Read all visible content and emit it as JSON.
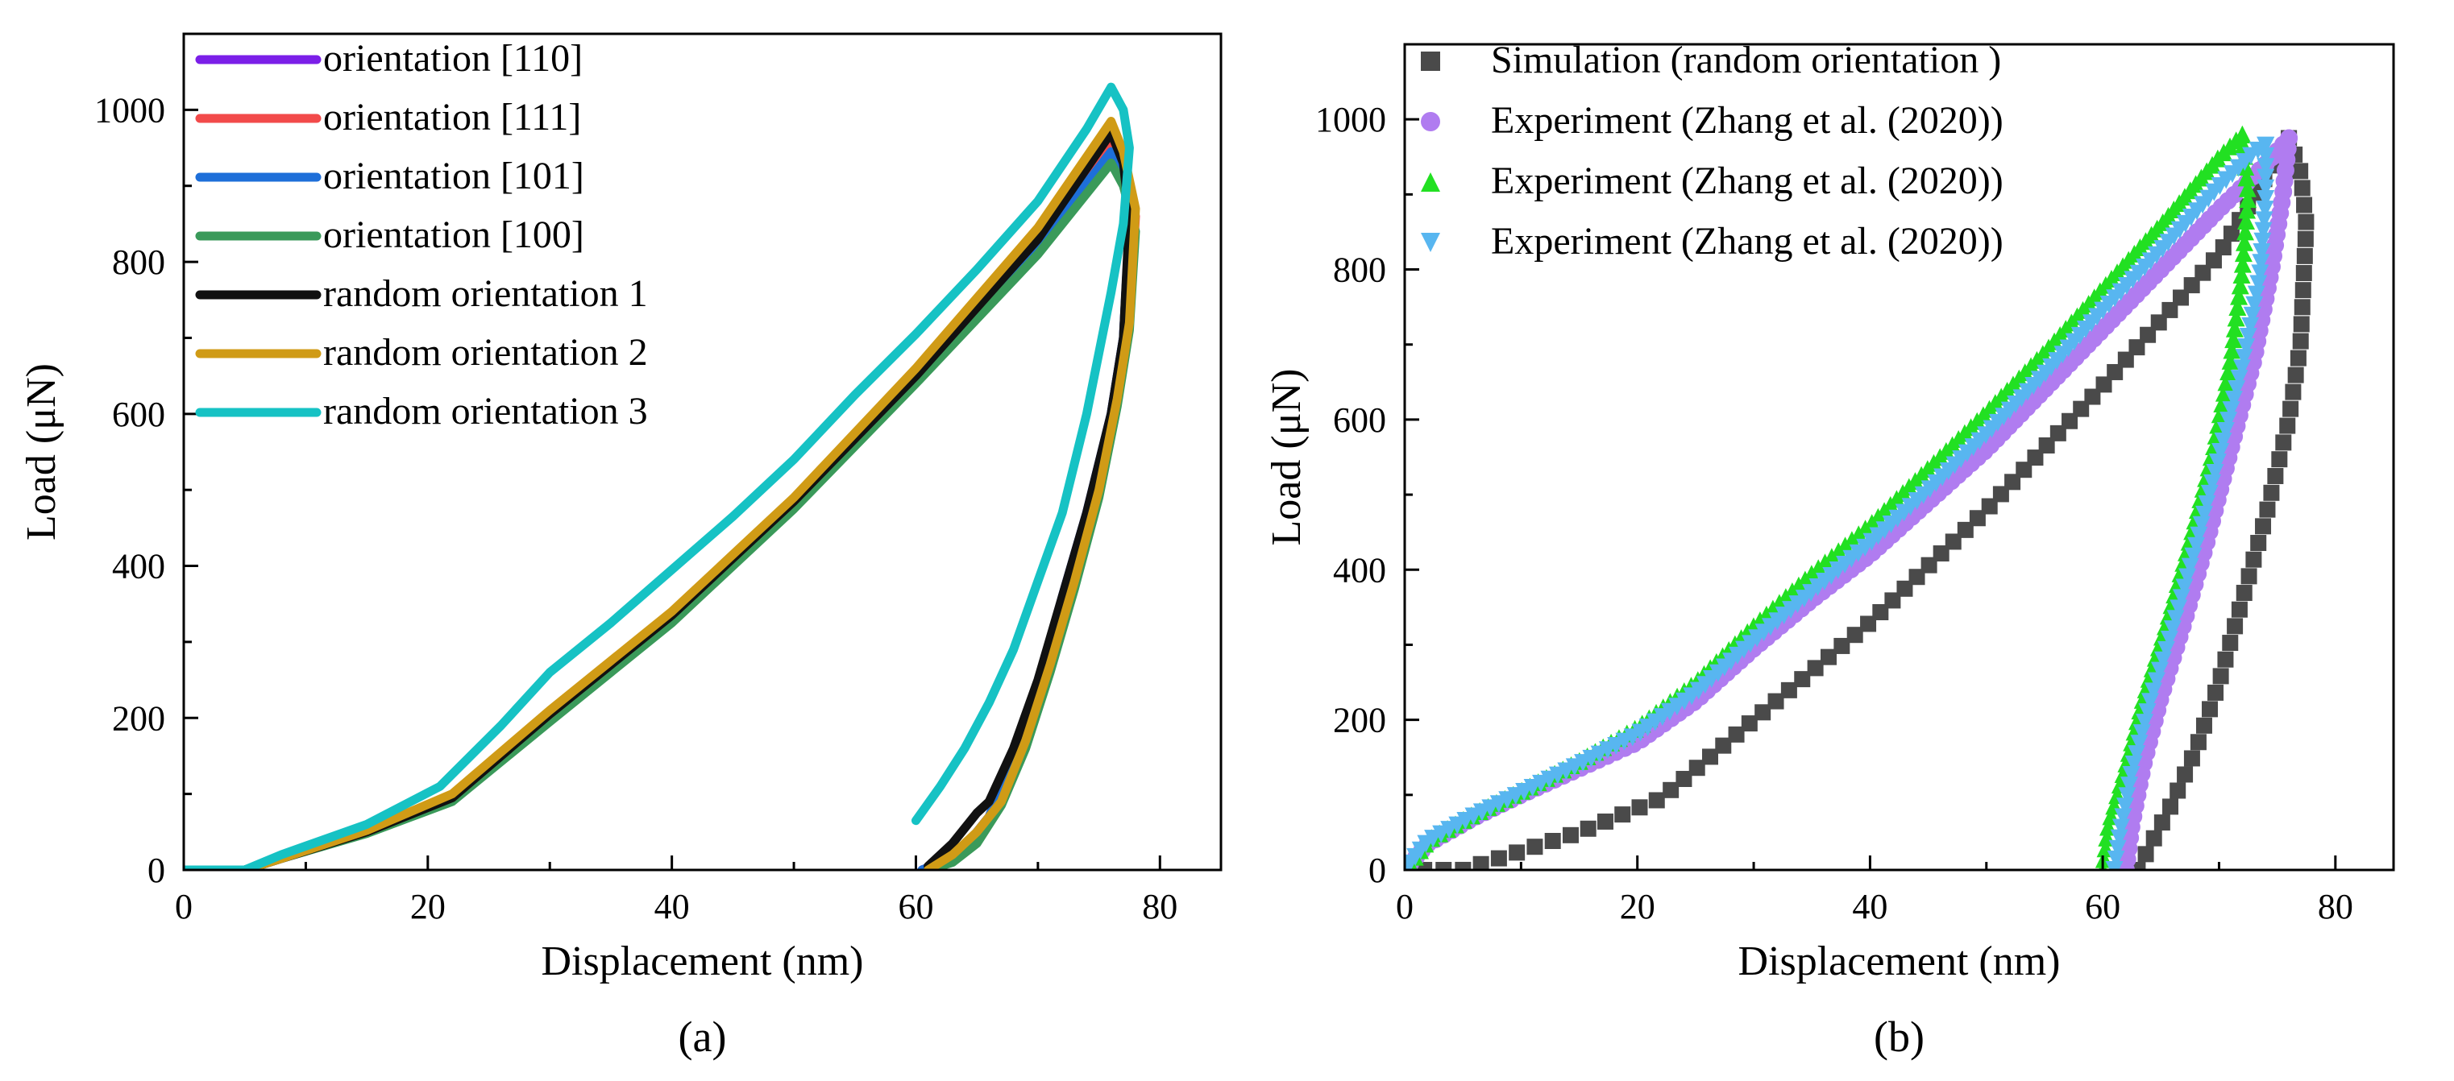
{
  "chart_data": [
    {
      "type": "line",
      "panel_label": "(a)",
      "xlabel": "Displacement (nm)",
      "ylabel": "Load (μN)",
      "xlim": [
        0,
        85
      ],
      "ylim": [
        0,
        1100
      ],
      "xticks": [
        0,
        20,
        40,
        60,
        80
      ],
      "yticks": [
        0,
        200,
        400,
        600,
        800,
        1000
      ],
      "legend_position": "top-left",
      "series": [
        {
          "name": "orientation [110]",
          "color": "#7b1fe8",
          "x": [
            0,
            5,
            8,
            15,
            22,
            30,
            40,
            50,
            60,
            70,
            76,
            77,
            77.5,
            77,
            76,
            74,
            72,
            70,
            68,
            66,
            64,
            62,
            60.5
          ],
          "y": [
            0,
            0,
            15,
            50,
            95,
            200,
            330,
            480,
            645,
            820,
            950,
            915,
            850,
            700,
            600,
            470,
            360,
            240,
            150,
            70,
            30,
            10,
            0
          ]
        },
        {
          "name": "orientation [111]",
          "color": "#f24a4a",
          "x": [
            0,
            5,
            8,
            15,
            22,
            30,
            40,
            50,
            60,
            70,
            76,
            77,
            78,
            77.5,
            76.5,
            75,
            73,
            71,
            69,
            67,
            65,
            64,
            62,
            61
          ],
          "y": [
            0,
            0,
            15,
            50,
            95,
            200,
            330,
            480,
            645,
            820,
            960,
            920,
            860,
            720,
            620,
            500,
            380,
            270,
            170,
            90,
            50,
            30,
            10,
            0
          ]
        },
        {
          "name": "orientation [101]",
          "color": "#1e6fd9",
          "x": [
            0,
            5,
            8,
            15,
            22,
            30,
            40,
            50,
            60,
            70,
            76,
            77,
            77.5,
            77,
            76,
            74,
            72,
            70,
            68,
            66,
            64,
            62,
            60.5
          ],
          "y": [
            0,
            0,
            15,
            50,
            95,
            200,
            330,
            480,
            645,
            820,
            945,
            910,
            850,
            700,
            600,
            470,
            360,
            240,
            150,
            70,
            30,
            10,
            0
          ]
        },
        {
          "name": "orientation [100]",
          "color": "#3a9a5a",
          "x": [
            0,
            5,
            8,
            15,
            22,
            30,
            40,
            50,
            60,
            70,
            76,
            77,
            78,
            77.5,
            76.5,
            75,
            73,
            71,
            69,
            67,
            65,
            63,
            61
          ],
          "y": [
            0,
            0,
            15,
            48,
            90,
            195,
            325,
            475,
            640,
            810,
            930,
            900,
            840,
            710,
            610,
            490,
            370,
            260,
            160,
            85,
            35,
            10,
            0
          ]
        },
        {
          "name": "random orientation 1",
          "color": "#111111",
          "x": [
            0,
            5,
            8,
            15,
            22,
            30,
            40,
            50,
            60,
            70,
            76,
            77,
            77.5,
            77,
            76,
            74,
            72,
            70,
            68,
            66,
            65,
            63,
            61
          ],
          "y": [
            0,
            0,
            15,
            50,
            95,
            205,
            335,
            485,
            650,
            830,
            970,
            930,
            860,
            700,
            600,
            470,
            360,
            250,
            160,
            90,
            75,
            35,
            5
          ]
        },
        {
          "name": "random orientation 2",
          "color": "#d09b16",
          "x": [
            0,
            5,
            8,
            15,
            22,
            30,
            40,
            50,
            60,
            70,
            76,
            77,
            78,
            77.5,
            76.5,
            75,
            73,
            71,
            69,
            67,
            65,
            63,
            61
          ],
          "y": [
            0,
            0,
            15,
            52,
            100,
            210,
            340,
            490,
            660,
            845,
            985,
            945,
            870,
            720,
            620,
            500,
            380,
            270,
            170,
            90,
            50,
            20,
            0
          ]
        },
        {
          "name": "random orientation 3",
          "color": "#16c2c4",
          "x": [
            0,
            5,
            8,
            15,
            21,
            26,
            30,
            35,
            40,
            45,
            50,
            55,
            60,
            65,
            70,
            74,
            76,
            77,
            77.5,
            77,
            76,
            74,
            72,
            70,
            68,
            66,
            64,
            62,
            60
          ],
          "y": [
            0,
            0,
            20,
            60,
            110,
            190,
            260,
            325,
            395,
            465,
            540,
            625,
            705,
            790,
            880,
            975,
            1030,
            1000,
            950,
            850,
            760,
            600,
            470,
            380,
            290,
            220,
            160,
            110,
            65
          ]
        }
      ]
    },
    {
      "type": "scatter",
      "panel_label": "(b)",
      "xlabel": "Displacement (nm)",
      "ylabel": "Load (μN)",
      "xlim": [
        0,
        85
      ],
      "ylim": [
        0,
        1100
      ],
      "xticks": [
        0,
        20,
        40,
        60,
        80
      ],
      "yticks": [
        0,
        200,
        400,
        600,
        800,
        1000
      ],
      "legend_position": "top-left",
      "series": [
        {
          "name": "Simulation (random orientation )",
          "color": "#4a4a4a",
          "marker": "square",
          "loading": {
            "x": [
              0,
              5,
              8,
              15,
              22,
              30,
              40,
              50,
              60,
              70,
              76
            ],
            "y": [
              0,
              0,
              15,
              50,
              95,
              200,
              330,
              480,
              645,
              820,
              975
            ]
          },
          "unloading": {
            "x": [
              76,
              77,
              77.5,
              77,
              76,
              74,
              72,
              70,
              68,
              66,
              64,
              63
            ],
            "y": [
              975,
              930,
              860,
              700,
              600,
              470,
              360,
              250,
              160,
              90,
              30,
              0
            ]
          }
        },
        {
          "name": "Experiment (Zhang et al. (2020))",
          "color": "#b07cf0",
          "marker": "circle",
          "loading": {
            "x": [
              0,
              2,
              6,
              10,
              15,
              20,
              25,
              30,
              35,
              40,
              45,
              50,
              55,
              60,
              65,
              70,
              74,
              76
            ],
            "y": [
              0,
              35,
              70,
              100,
              135,
              170,
              225,
              295,
              360,
              420,
              490,
              560,
              640,
              720,
              800,
              880,
              940,
              975
            ]
          },
          "unloading": {
            "x": [
              76,
              75.5,
              74.5,
              73,
              71,
              69,
              67,
              65,
              63.5,
              62.5,
              62
            ],
            "y": [
              975,
              900,
              800,
              680,
              560,
              440,
              330,
              230,
              140,
              60,
              0
            ]
          }
        },
        {
          "name": "Experiment (Zhang et al. (2020))",
          "color": "#22e022",
          "marker": "triangle-up",
          "loading": {
            "x": [
              0,
              2,
              6,
              10,
              15,
              20,
              25,
              30,
              35,
              40,
              45,
              50,
              55,
              60,
              65,
              70,
              72
            ],
            "y": [
              0,
              40,
              75,
              105,
              145,
              190,
              250,
              325,
              395,
              460,
              535,
              610,
              690,
              775,
              860,
              950,
              980
            ]
          },
          "unloading": {
            "x": [
              72,
              72.5,
              72,
              71,
              69.5,
              67.5,
              65.5,
              63.5,
              62,
              60.5,
              60
            ],
            "y": [
              980,
              900,
              800,
              680,
              560,
              440,
              330,
              230,
              140,
              60,
              0
            ]
          }
        },
        {
          "name": "Experiment (Zhang et al. (2020))",
          "color": "#58b6f0",
          "marker": "triangle-down",
          "loading": {
            "x": [
              0,
              2,
              6,
              10,
              15,
              20,
              25,
              30,
              35,
              40,
              45,
              50,
              55,
              60,
              65,
              70,
              73,
              74
            ],
            "y": [
              0,
              38,
              72,
              102,
              140,
              180,
              235,
              305,
              370,
              435,
              505,
              580,
              660,
              745,
              825,
              910,
              955,
              965
            ]
          },
          "unloading": {
            "x": [
              74,
              74,
              73.5,
              72,
              70,
              68,
              66,
              64,
              62.5,
              61.5,
              61
            ],
            "y": [
              965,
              890,
              790,
              670,
              550,
              430,
              320,
              220,
              130,
              50,
              0
            ]
          }
        }
      ]
    }
  ]
}
